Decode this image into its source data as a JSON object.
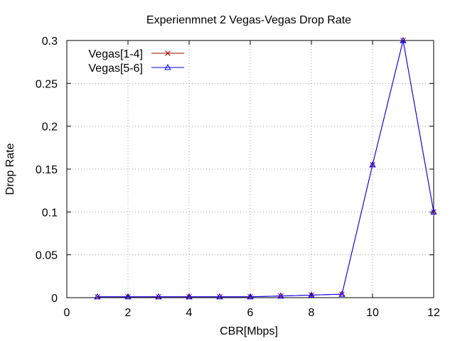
{
  "chart_data": {
    "type": "line",
    "title": "Experienmnet 2 Vegas-Vegas Drop Rate",
    "xlabel": "CBR[Mbps]",
    "ylabel": "Drop Rate",
    "xlim": [
      0,
      12
    ],
    "ylim": [
      0,
      0.3
    ],
    "xticks": [
      0,
      2,
      4,
      6,
      8,
      10,
      12
    ],
    "yticks": [
      0,
      0.05,
      0.1,
      0.15,
      0.2,
      0.25,
      0.3
    ],
    "grid": true,
    "legend_position": "top-left",
    "x": [
      1,
      2,
      3,
      4,
      5,
      6,
      7,
      8,
      9,
      10,
      11,
      12
    ],
    "series": [
      {
        "name": "Vegas[1-4]",
        "color": "#a00000",
        "marker": "x",
        "values": [
          0.001,
          0.001,
          0.001,
          0.001,
          0.001,
          0.001,
          0.002,
          0.003,
          0.004,
          0.155,
          0.3,
          0.1
        ]
      },
      {
        "name": "Vegas[5-6]",
        "color": "#0000ff",
        "marker": "triangle",
        "values": [
          0.001,
          0.001,
          0.001,
          0.001,
          0.001,
          0.001,
          0.002,
          0.003,
          0.004,
          0.155,
          0.3,
          0.1
        ]
      }
    ]
  }
}
